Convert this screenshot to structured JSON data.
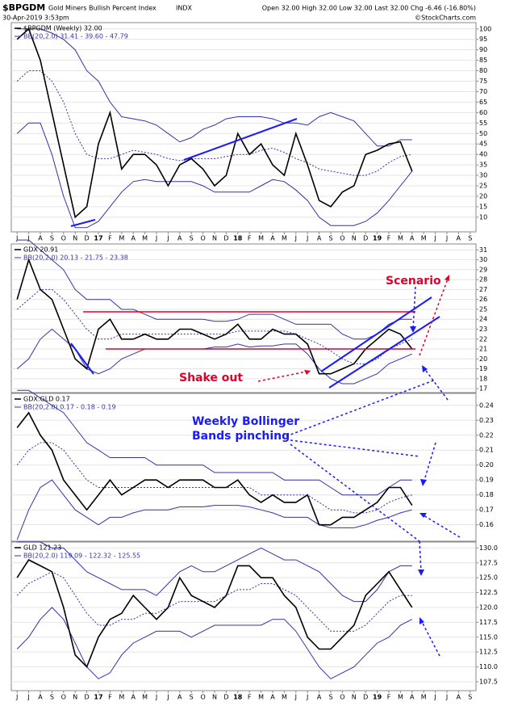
{
  "header": {
    "symbol": "$BPGDM",
    "name": "Gold Miners Bullish Percent Index",
    "exchange": "INDX",
    "date": "30-Apr-2019 3:53pm",
    "quote": "Open 32.00  High 32.00  Low 32.00  Last 32.00  Chg -6.46 (-16.80%)",
    "source": "©StockCharts.com"
  },
  "chart_data": [
    {
      "type": "line",
      "legend": "$BPGDM (Weekly) 32.00",
      "grid": true,
      "categories": [
        "J",
        "J",
        "A",
        "S",
        "O",
        "N",
        "D",
        "17",
        "F",
        "M",
        "A",
        "M",
        "J",
        "J",
        "A",
        "S",
        "O",
        "N",
        "D",
        "18",
        "F",
        "M",
        "A",
        "M",
        "J",
        "J",
        "A",
        "S",
        "O",
        "N",
        "D",
        "19",
        "F",
        "M",
        "A",
        "M",
        "J",
        "J",
        "A",
        "S"
      ],
      "series": [
        {
          "name": "$BPGDM (Weekly) 32.00",
          "color": "#000000",
          "values": [
            95,
            100,
            85,
            60,
            35,
            10,
            15,
            45,
            60,
            33,
            40,
            40,
            35,
            25,
            35,
            38,
            33,
            25,
            30,
            50,
            40,
            45,
            35,
            30,
            50,
            35,
            18,
            15,
            22,
            25,
            40,
            42,
            45,
            46,
            32,
            null,
            null,
            null,
            null,
            null
          ]
        }
      ],
      "bands": {
        "label": "BB(20,2.0) 31.41 - 39.60 - 47.79",
        "color": "#3333aa",
        "upper": [
          100,
          100,
          100,
          98,
          95,
          90,
          80,
          75,
          65,
          58,
          57,
          56,
          54,
          50,
          46,
          48,
          52,
          54,
          57,
          58,
          58,
          58,
          57,
          55,
          55,
          54,
          58,
          60,
          58,
          56,
          50,
          44,
          44,
          47,
          47,
          null,
          null,
          null,
          null,
          null
        ],
        "middle": [
          75,
          80,
          80,
          75,
          65,
          50,
          40,
          38,
          38,
          40,
          42,
          41,
          40,
          38,
          37,
          38,
          38,
          38,
          39,
          40,
          40,
          42,
          43,
          41,
          38,
          36,
          33,
          32,
          31,
          30,
          30,
          32,
          36,
          39,
          40,
          null,
          null,
          null,
          null,
          null
        ],
        "lower": [
          50,
          55,
          55,
          40,
          20,
          5,
          5,
          8,
          15,
          22,
          27,
          28,
          27,
          27,
          27,
          27,
          25,
          22,
          22,
          22,
          22,
          25,
          28,
          27,
          23,
          18,
          10,
          6,
          6,
          6,
          8,
          12,
          18,
          25,
          32,
          null,
          null,
          null,
          null,
          null
        ]
      },
      "ylim": [
        3,
        103
      ],
      "yticks": [
        10,
        15,
        20,
        25,
        30,
        35,
        40,
        45,
        50,
        55,
        60,
        65,
        70,
        75,
        80,
        85,
        90,
        95,
        100
      ]
    },
    {
      "type": "line",
      "legend": "GDX 20.91",
      "grid": true,
      "series": [
        {
          "name": "GDX 20.91",
          "color": "#000000",
          "values": [
            26,
            30,
            27,
            26,
            23,
            20,
            19,
            23,
            24,
            22,
            22,
            22.5,
            22,
            22,
            23,
            23,
            22.5,
            22,
            22.5,
            23.5,
            22,
            22,
            23,
            22.5,
            22.5,
            21.5,
            18.5,
            18.5,
            19,
            19.5,
            21,
            22,
            23,
            22.5,
            21,
            null,
            null,
            null,
            null,
            null
          ]
        }
      ],
      "bands": {
        "label": "BB(20,2.0) 20.13 - 21.75 - 23.38",
        "color": "#3333aa",
        "upper": [
          32,
          32,
          31,
          30,
          29,
          27,
          26,
          26,
          26,
          25,
          25,
          24.5,
          24,
          24,
          24,
          24,
          24,
          23.8,
          23.8,
          24,
          24.5,
          24.5,
          24.5,
          24,
          23.5,
          23.5,
          23.5,
          23.5,
          22.5,
          22,
          22,
          22.5,
          23.5,
          24,
          24,
          null,
          null,
          null,
          null,
          null
        ],
        "middle": [
          25,
          26,
          27,
          27,
          26,
          24.5,
          23,
          22,
          22,
          22.5,
          22.5,
          22.5,
          22.5,
          22.5,
          22.5,
          22.5,
          22.5,
          22.5,
          22.5,
          22.8,
          22.8,
          22.8,
          22.8,
          22.8,
          22.5,
          22,
          21.5,
          20.8,
          20,
          19.5,
          19.5,
          20,
          21,
          21.5,
          22,
          null,
          null,
          null,
          null,
          null
        ],
        "lower": [
          19,
          20,
          22,
          23,
          22,
          21,
          19,
          18.5,
          19,
          20,
          20.5,
          21,
          21,
          21,
          21,
          21,
          21,
          21.2,
          21.2,
          21.5,
          21.2,
          21.3,
          21.3,
          21.5,
          21.5,
          20.5,
          19,
          18,
          17.5,
          17.5,
          18,
          18.5,
          19.5,
          20,
          20.5,
          null,
          null,
          null,
          null,
          null
        ]
      },
      "annotations": [
        "Scenario",
        "Shake out"
      ],
      "ylim": [
        16.6,
        31.6
      ],
      "yticks": [
        17,
        18,
        19,
        20,
        21,
        22,
        23,
        24,
        25,
        26,
        27,
        28,
        29,
        30,
        31
      ]
    },
    {
      "type": "line",
      "legend": "GDX:GLD 0.17",
      "grid": true,
      "series": [
        {
          "name": "GDX:GLD 0.17",
          "color": "#000000",
          "values": [
            0.225,
            0.235,
            0.22,
            0.21,
            0.19,
            0.18,
            0.17,
            0.18,
            0.19,
            0.18,
            0.185,
            0.19,
            0.19,
            0.185,
            0.19,
            0.19,
            0.19,
            0.185,
            0.185,
            0.19,
            0.18,
            0.175,
            0.18,
            0.175,
            0.175,
            0.18,
            0.16,
            0.16,
            0.165,
            0.165,
            0.17,
            0.175,
            0.185,
            0.185,
            0.173,
            null,
            null,
            null,
            null,
            null
          ]
        }
      ],
      "bands": {
        "label": "BB(20,2.0) 0.17 - 0.18 - 0.19",
        "color": "#3333aa",
        "upper": [
          0.25,
          0.25,
          0.245,
          0.24,
          0.235,
          0.225,
          0.215,
          0.21,
          0.205,
          0.205,
          0.205,
          0.205,
          0.2,
          0.2,
          0.2,
          0.2,
          0.2,
          0.195,
          0.195,
          0.195,
          0.195,
          0.195,
          0.195,
          0.19,
          0.19,
          0.19,
          0.19,
          0.185,
          0.18,
          0.18,
          0.18,
          0.18,
          0.185,
          0.19,
          0.19,
          null,
          null,
          null,
          null,
          null
        ],
        "middle": [
          0.2,
          0.21,
          0.215,
          0.215,
          0.21,
          0.2,
          0.19,
          0.185,
          0.185,
          0.185,
          0.185,
          0.185,
          0.185,
          0.185,
          0.185,
          0.185,
          0.185,
          0.185,
          0.185,
          0.185,
          0.185,
          0.18,
          0.18,
          0.18,
          0.18,
          0.18,
          0.175,
          0.17,
          0.17,
          0.168,
          0.168,
          0.17,
          0.175,
          0.178,
          0.18,
          null,
          null,
          null,
          null,
          null
        ],
        "lower": [
          0.15,
          0.17,
          0.185,
          0.19,
          0.18,
          0.17,
          0.165,
          0.16,
          0.165,
          0.165,
          0.168,
          0.17,
          0.17,
          0.17,
          0.172,
          0.172,
          0.172,
          0.173,
          0.173,
          0.173,
          0.172,
          0.17,
          0.168,
          0.165,
          0.165,
          0.165,
          0.16,
          0.158,
          0.158,
          0.158,
          0.16,
          0.163,
          0.165,
          0.168,
          0.17,
          null,
          null,
          null,
          null,
          null
        ]
      },
      "annotations": [
        "Weekly Bollinger",
        "Bands pinching"
      ],
      "ylim": [
        0.149,
        0.248
      ],
      "yticks": [
        0.16,
        0.17,
        0.18,
        0.19,
        {
          "value": 0.2,
          "label": "0.20"
        },
        0.21,
        0.22,
        0.23,
        0.24
      ]
    },
    {
      "type": "line",
      "legend": "GLD 121.23",
      "grid": true,
      "categories": [
        "J",
        "J",
        "A",
        "S",
        "O",
        "N",
        "D",
        "17",
        "F",
        "M",
        "A",
        "M",
        "J",
        "J",
        "A",
        "S",
        "O",
        "N",
        "D",
        "18",
        "F",
        "M",
        "A",
        "M",
        "J",
        "J",
        "A",
        "S",
        "O",
        "N",
        "D",
        "19",
        "F",
        "M",
        "A",
        "M",
        "J",
        "J",
        "A",
        "S"
      ],
      "series": [
        {
          "name": "GLD 121.23",
          "color": "#000000",
          "values": [
            125,
            128,
            127,
            126,
            120,
            112,
            110,
            115,
            118,
            119,
            122,
            120,
            118,
            120,
            125,
            122,
            121,
            120,
            122,
            127,
            127,
            125,
            125,
            122,
            120,
            115,
            113,
            113,
            115,
            117,
            122,
            124,
            126,
            123,
            120,
            null,
            null,
            null,
            null,
            null
          ]
        }
      ],
      "bands": {
        "label": "BB(20,2.0) 119.09 - 122.32 - 125.55",
        "color": "#3333aa",
        "upper": [
          131,
          131,
          131,
          130,
          130,
          128,
          126,
          125,
          124,
          123,
          123,
          123,
          122,
          124,
          126,
          127,
          126,
          126,
          127,
          128,
          129,
          130,
          129,
          128,
          128,
          127,
          126,
          124,
          122,
          121,
          121,
          123,
          126,
          127,
          127,
          null,
          null,
          null,
          null,
          null
        ],
        "middle": [
          122,
          124,
          125,
          126,
          125,
          122,
          119,
          117,
          117,
          118,
          118,
          119,
          119,
          120,
          121,
          121,
          121,
          121,
          122,
          123,
          123,
          124,
          124,
          123,
          122,
          120,
          118,
          116,
          116,
          116,
          117,
          119,
          121,
          122,
          122,
          null,
          null,
          null,
          null,
          null
        ],
        "lower": [
          113,
          115,
          118,
          120,
          118,
          114,
          110,
          108,
          109,
          112,
          114,
          115,
          116,
          116,
          116,
          115,
          116,
          117,
          117,
          117,
          117,
          117,
          118,
          118,
          116,
          113,
          110,
          108,
          109,
          110,
          112,
          114,
          115,
          117,
          118,
          null,
          null,
          null,
          null,
          null
        ]
      },
      "ylim": [
        106,
        131
      ],
      "yticks": [
        107.5,
        {
          "value": 110,
          "label": "110.0"
        },
        112.5,
        {
          "value": 115,
          "label": "115.0"
        },
        117.5,
        {
          "value": 120,
          "label": "120.0"
        },
        122.5,
        {
          "value": 125,
          "label": "125.0"
        },
        127.5,
        {
          "value": 130,
          "label": "130.0"
        }
      ]
    }
  ]
}
